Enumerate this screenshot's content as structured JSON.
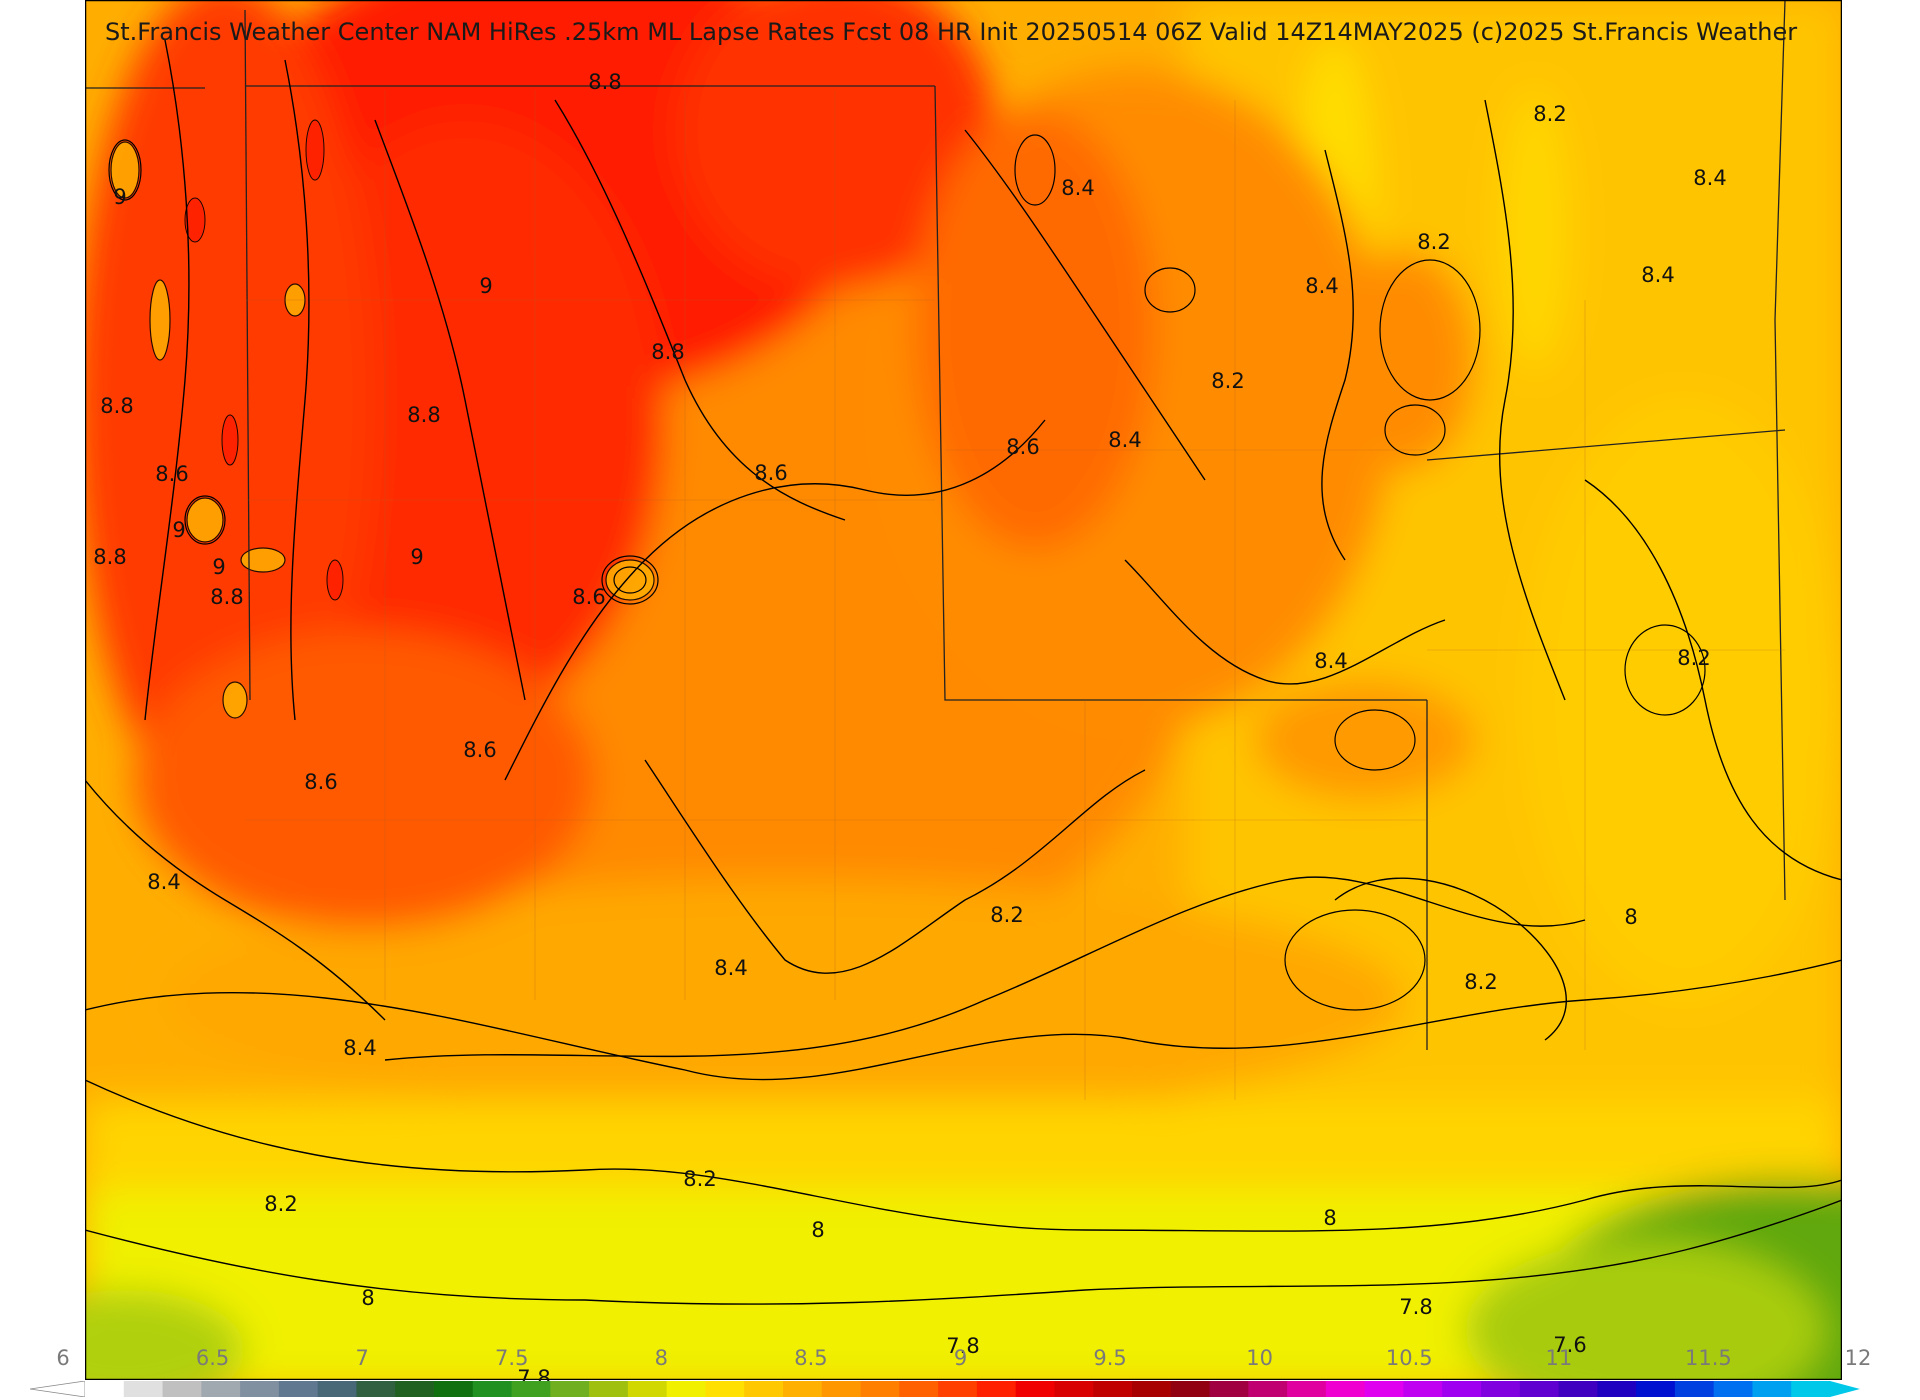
{
  "title": "St.Francis Weather Center NAM HiRes .25km ML Lapse Rates  Fcst 08 HR Init 20250514 06Z  Valid 14Z14MAY2025   (c)2025 St.Francis Weather",
  "contour_labels": [
    "8.8",
    "8.2",
    "8.4",
    "9",
    "8.4",
    "8.2",
    "8.4",
    "9",
    "8.4",
    "8.8",
    "8.2",
    "8.8",
    "8.8",
    "8.4",
    "8.6",
    "8.6",
    "8.6",
    "9",
    "8.8",
    "9",
    "9",
    "8.6",
    "8.8",
    "8.4",
    "8.6",
    "8.6",
    "8.2",
    "8.4",
    "8.2",
    "8.4",
    "8.4",
    "8",
    "8.2",
    "8.2",
    "8.2",
    "8",
    "8",
    "7.8",
    "7.8",
    "7.8",
    "7.6",
    "8"
  ],
  "colorbar": {
    "ticks": [
      "6",
      "6.5",
      "7",
      "7.5",
      "8",
      "8.5",
      "9",
      "9.5",
      "10",
      "10.5",
      "11",
      "11.5",
      "12"
    ],
    "min": 6,
    "max": 12,
    "colors": [
      "#ffffff",
      "#e0e0e0",
      "#c0c0c0",
      "#a0a8b0",
      "#8090a0",
      "#607890",
      "#486878",
      "#306040",
      "#206020",
      "#107010",
      "#209020",
      "#40a020",
      "#70b020",
      "#a0c010",
      "#d0d800",
      "#f0f000",
      "#ffe000",
      "#ffc800",
      "#ffb000",
      "#ff9800",
      "#ff8000",
      "#ff6000",
      "#ff4000",
      "#ff2000",
      "#f00000",
      "#d80000",
      "#c00000",
      "#a80000",
      "#900010",
      "#a00040",
      "#c00070",
      "#e000a0",
      "#f000d0",
      "#e000f0",
      "#c000f0",
      "#a000f0",
      "#8000e0",
      "#6000d0",
      "#4000c0",
      "#2000c0",
      "#0010d0",
      "#0040e0",
      "#0070f0",
      "#00a0f0",
      "#00c8e8"
    ]
  },
  "colors": {
    "red": "#ff1a00",
    "orange_red": "#ff4500",
    "orange": "#ff8c00",
    "amber": "#ffae00",
    "yellow_orange": "#ffc800",
    "yellow": "#ffe600",
    "lime_yellow": "#e8f000",
    "green_yellow": "#b0d010",
    "green": "#50a010"
  }
}
